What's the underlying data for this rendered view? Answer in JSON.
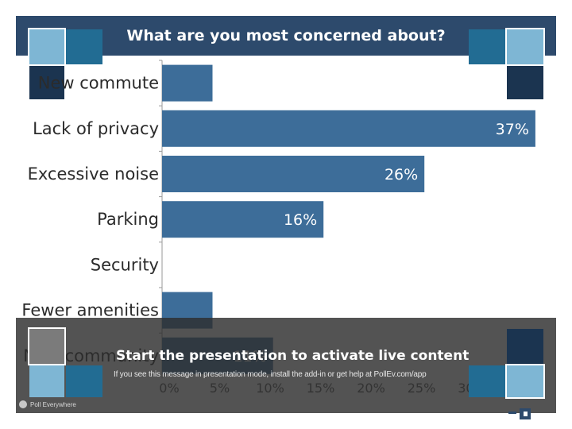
{
  "title": "What are you most concerned about?",
  "colors": {
    "title_bar": "#2d4a6c",
    "bar": "#3d6d99",
    "tile_light": "#7eb6d4",
    "tile_mid": "#226c93",
    "tile_dark": "#1b3450",
    "overlay": "#2d2d2d"
  },
  "chart_data": {
    "type": "bar",
    "orientation": "horizontal",
    "title": "What are you most concerned about?",
    "categories": [
      "New commute",
      "Lack of privacy",
      "Excessive noise",
      "Parking",
      "Security",
      "Fewer amenities",
      "New community"
    ],
    "values": [
      5,
      37,
      26,
      16,
      0,
      5,
      11
    ],
    "value_labels": [
      "5%",
      "37%",
      "26%",
      "16%",
      "",
      "5%",
      "11%"
    ],
    "x_ticks": [
      "0%",
      "5%",
      "10%",
      "15%",
      "20%",
      "25%",
      "30%"
    ],
    "xlim": [
      0,
      37
    ],
    "grid": false
  },
  "overlay": {
    "message": "Start the presentation to activate live content",
    "submessage": "If you see this message in presentation mode, install the add-in or get help at PollEv.com/app",
    "brand": "Poll Everywhere"
  }
}
